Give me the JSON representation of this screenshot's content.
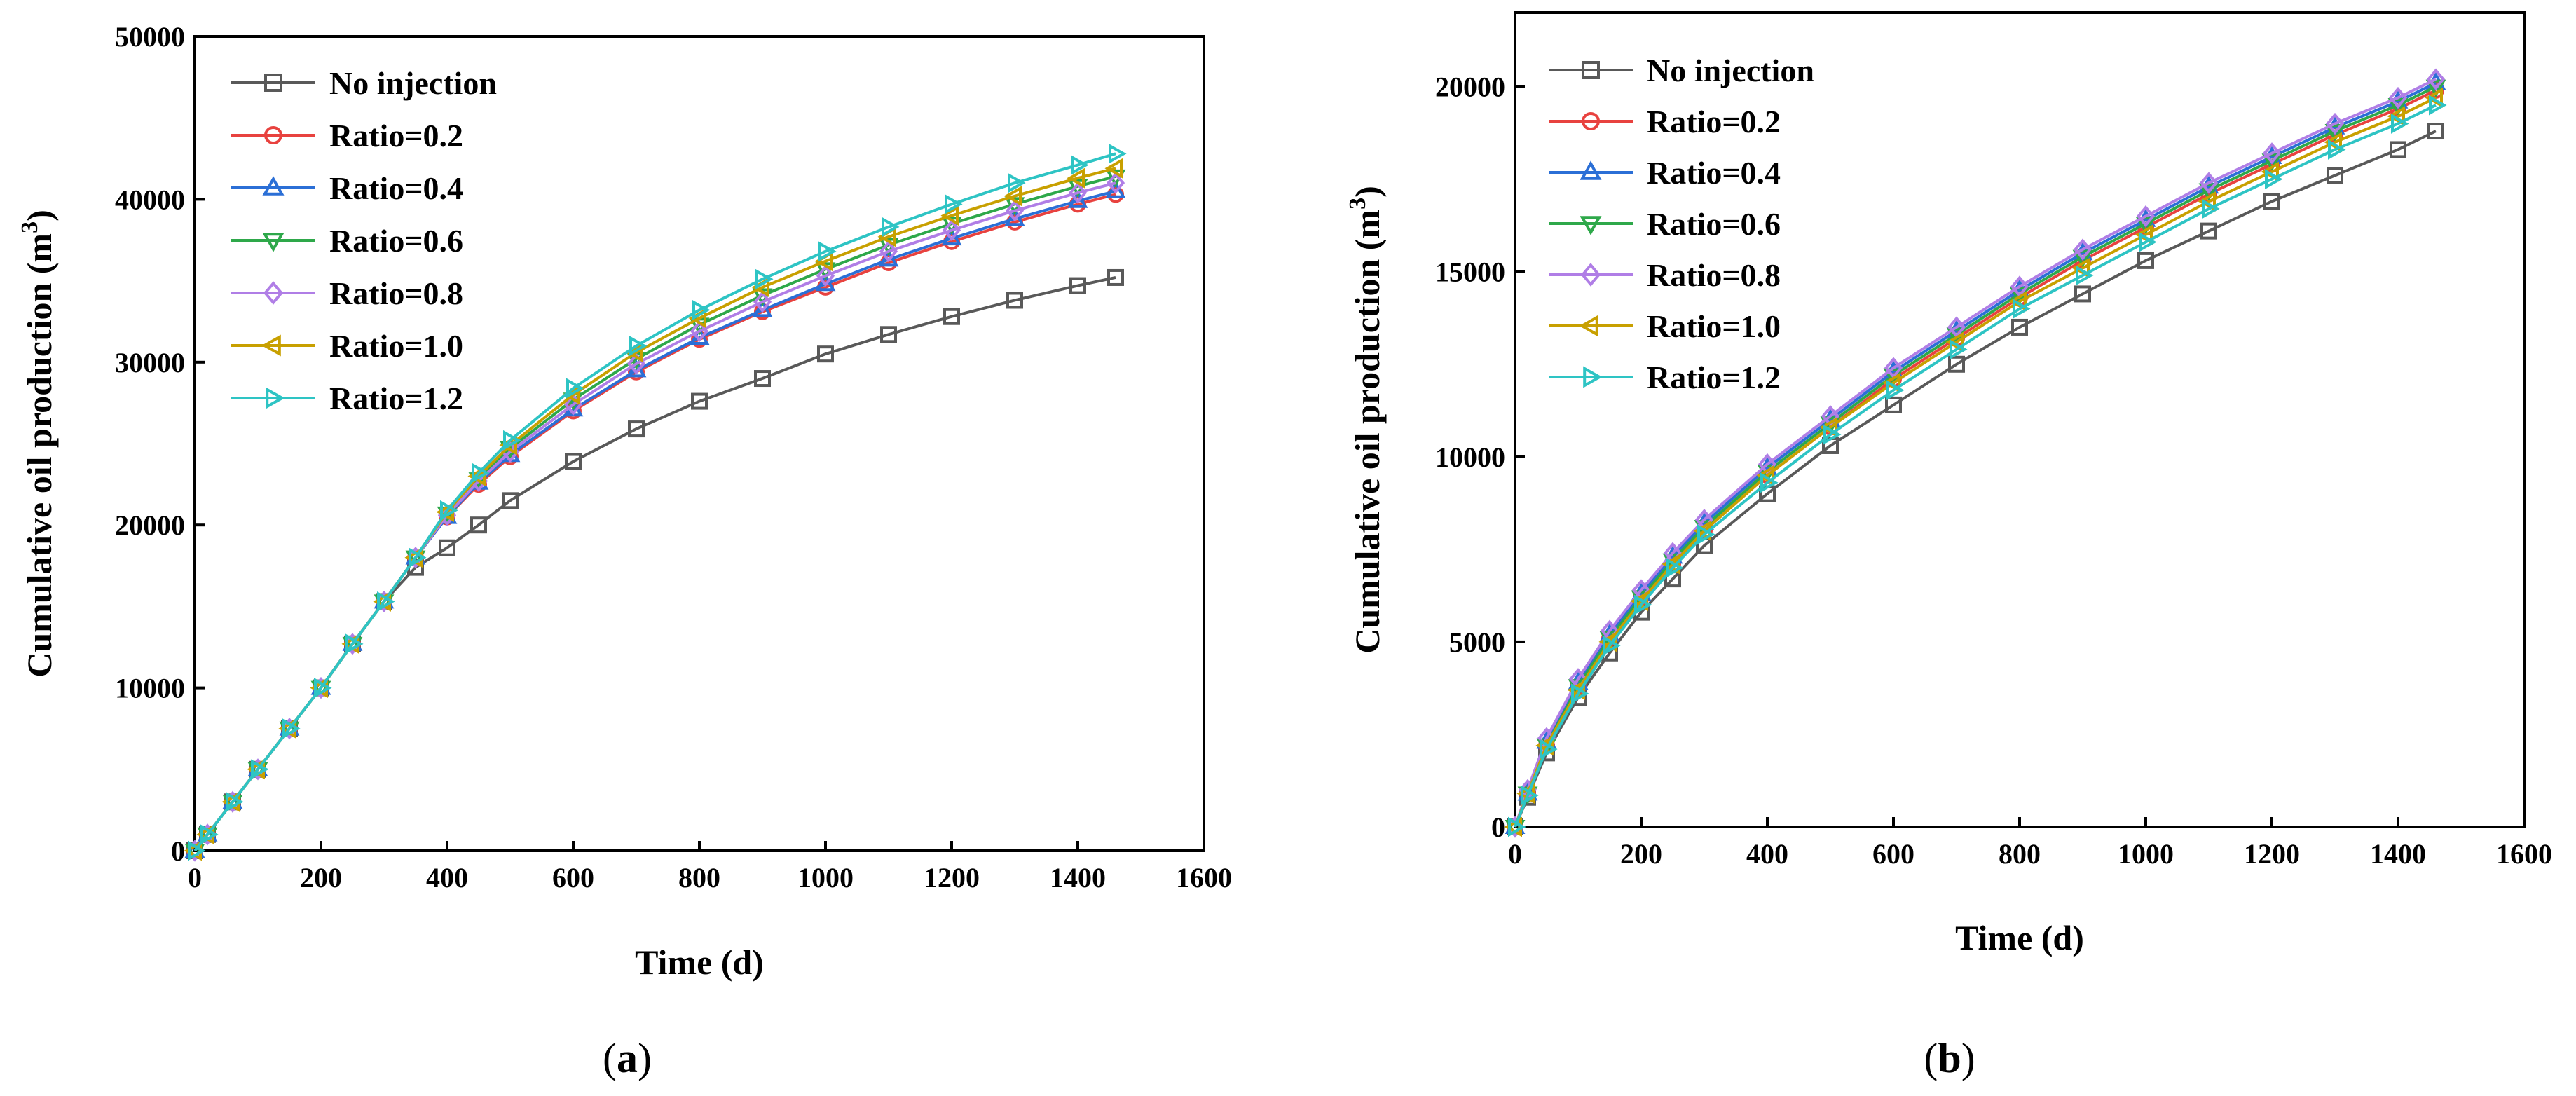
{
  "chart_data": [
    {
      "type": "line",
      "panel": "a",
      "caption": "(a)",
      "caption_open": "(",
      "caption_letter": "a",
      "caption_close": ")",
      "xlabel": "Time (d)",
      "ylabel": "Cumulative oil production (m",
      "ylabel_sup": "3",
      "ylabel_close": ")",
      "xlim": [
        0,
        1600
      ],
      "ylim": [
        0,
        50000
      ],
      "xticks": [
        0,
        200,
        400,
        600,
        800,
        1000,
        1200,
        1400,
        1600
      ],
      "yticks": [
        0,
        10000,
        20000,
        30000,
        40000,
        50000
      ],
      "legend_position": "top-left",
      "x": [
        0,
        20,
        60,
        100,
        150,
        200,
        250,
        300,
        350,
        400,
        450,
        500,
        600,
        700,
        800,
        900,
        1000,
        1100,
        1200,
        1300,
        1400,
        1460
      ],
      "series": [
        {
          "name": "No injection",
          "color": "#595959",
          "marker": "square",
          "values": [
            0,
            1000,
            3000,
            5000,
            7500,
            10000,
            12700,
            15300,
            17400,
            18600,
            20000,
            21500,
            23900,
            25900,
            27600,
            29000,
            30500,
            31700,
            32800,
            33800,
            34700,
            35200
          ]
        },
        {
          "name": "Ratio=0.2",
          "color": "#e8423f",
          "marker": "circle",
          "values": [
            0,
            1000,
            3000,
            5000,
            7500,
            10000,
            12700,
            15300,
            18000,
            20500,
            22500,
            24200,
            27000,
            29400,
            31400,
            33100,
            34600,
            36100,
            37400,
            38600,
            39700,
            40300
          ]
        },
        {
          "name": "Ratio=0.4",
          "color": "#2b6fd6",
          "marker": "triangle-up",
          "values": [
            0,
            1000,
            3000,
            5000,
            7500,
            10000,
            12700,
            15300,
            18000,
            20500,
            22600,
            24300,
            27100,
            29500,
            31500,
            33200,
            34800,
            36300,
            37600,
            38800,
            39900,
            40500
          ]
        },
        {
          "name": "Ratio=0.6",
          "color": "#2ea84a",
          "marker": "triangle-down",
          "values": [
            0,
            1000,
            3000,
            5000,
            7500,
            10000,
            12700,
            15300,
            18000,
            20700,
            22800,
            24700,
            27700,
            30200,
            32300,
            34100,
            35700,
            37200,
            38500,
            39700,
            40800,
            41400
          ]
        },
        {
          "name": "Ratio=0.8",
          "color": "#b07ee6",
          "marker": "diamond",
          "values": [
            0,
            1000,
            3000,
            5000,
            7500,
            10000,
            12700,
            15300,
            18000,
            20600,
            22700,
            24500,
            27400,
            29900,
            31900,
            33700,
            35300,
            36800,
            38100,
            39300,
            40400,
            41000
          ]
        },
        {
          "name": "Ratio=1.0",
          "color": "#c8a000",
          "marker": "triangle-left",
          "values": [
            0,
            1000,
            3000,
            5000,
            7500,
            10000,
            12700,
            15300,
            18000,
            20800,
            23000,
            24900,
            28000,
            30600,
            32700,
            34600,
            36200,
            37700,
            39000,
            40200,
            41300,
            41900
          ]
        },
        {
          "name": "Ratio=1.2",
          "color": "#2ec4c4",
          "marker": "triangle-right",
          "values": [
            0,
            1000,
            3000,
            5000,
            7500,
            10000,
            12700,
            15300,
            18000,
            20900,
            23200,
            25200,
            28400,
            31000,
            33200,
            35100,
            36800,
            38300,
            39700,
            41000,
            42100,
            42800
          ]
        }
      ]
    },
    {
      "type": "line",
      "panel": "b",
      "caption": "(b)",
      "caption_open": "(",
      "caption_letter": "b",
      "caption_close": ")",
      "xlabel": "Time (d)",
      "ylabel": "Cumulative oil production (m",
      "ylabel_sup": "3",
      "ylabel_close": ")",
      "xlim": [
        0,
        1600
      ],
      "ylim": [
        0,
        22000
      ],
      "xticks": [
        0,
        200,
        400,
        600,
        800,
        1000,
        1200,
        1400,
        1600
      ],
      "yticks": [
        0,
        5000,
        10000,
        15000,
        20000
      ],
      "legend_position": "top-left",
      "x": [
        0,
        20,
        50,
        100,
        150,
        200,
        250,
        300,
        400,
        500,
        600,
        700,
        800,
        900,
        1000,
        1100,
        1200,
        1300,
        1400,
        1460
      ],
      "series": [
        {
          "name": "No injection",
          "color": "#595959",
          "marker": "square",
          "values": [
            0,
            800,
            2000,
            3500,
            4700,
            5800,
            6700,
            7600,
            9000,
            10300,
            11400,
            12500,
            13500,
            14400,
            15300,
            16100,
            16900,
            17600,
            18300,
            18800
          ]
        },
        {
          "name": "Ratio=0.2",
          "color": "#e8423f",
          "marker": "circle",
          "values": [
            0,
            900,
            2200,
            3800,
            5100,
            6200,
            7100,
            8000,
            9500,
            10800,
            12100,
            13200,
            14300,
            15300,
            16200,
            17100,
            17900,
            18700,
            19400,
            19900
          ]
        },
        {
          "name": "Ratio=0.4",
          "color": "#2b6fd6",
          "marker": "triangle-up",
          "values": [
            0,
            900,
            2300,
            3900,
            5200,
            6300,
            7300,
            8200,
            9700,
            11000,
            12300,
            13400,
            14500,
            15500,
            16400,
            17300,
            18100,
            18900,
            19600,
            20100
          ]
        },
        {
          "name": "Ratio=0.6",
          "color": "#2ea84a",
          "marker": "triangle-down",
          "values": [
            0,
            900,
            2200,
            3800,
            5100,
            6200,
            7200,
            8100,
            9600,
            10900,
            12200,
            13300,
            14400,
            15400,
            16300,
            17200,
            18000,
            18800,
            19500,
            20000
          ]
        },
        {
          "name": "Ratio=0.8",
          "color": "#b07ee6",
          "marker": "diamond",
          "values": [
            0,
            1000,
            2400,
            4000,
            5300,
            6400,
            7400,
            8300,
            9800,
            11100,
            12400,
            13500,
            14600,
            15600,
            16500,
            17400,
            18200,
            19000,
            19700,
            20200
          ]
        },
        {
          "name": "Ratio=1.0",
          "color": "#c8a000",
          "marker": "triangle-left",
          "values": [
            0,
            900,
            2200,
            3700,
            5000,
            6100,
            7100,
            8000,
            9500,
            10800,
            12000,
            13100,
            14200,
            15100,
            16000,
            16900,
            17700,
            18500,
            19200,
            19700
          ]
        },
        {
          "name": "Ratio=1.2",
          "color": "#2ec4c4",
          "marker": "triangle-right",
          "values": [
            0,
            850,
            2100,
            3600,
            4900,
            6000,
            7000,
            7900,
            9300,
            10600,
            11800,
            12900,
            14000,
            14900,
            15800,
            16700,
            17500,
            18300,
            19000,
            19500
          ]
        }
      ]
    }
  ]
}
